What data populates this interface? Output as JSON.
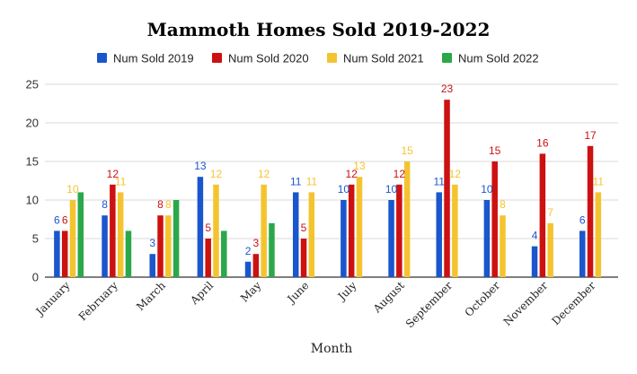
{
  "chart_data": {
    "type": "bar",
    "title": "Mammoth Homes Sold 2019-2022",
    "xlabel": "Month",
    "ylabel": "",
    "ylim": [
      0,
      25
    ],
    "yticks": [
      0,
      5,
      10,
      15,
      20,
      25
    ],
    "grid": true,
    "legend_position": "top",
    "categories": [
      "January",
      "February",
      "March",
      "April",
      "May",
      "June",
      "July",
      "August",
      "September",
      "October",
      "November",
      "December"
    ],
    "series": [
      {
        "name": "Num Sold 2019",
        "color": "#1a56cc",
        "values": [
          6,
          8,
          3,
          13,
          2,
          11,
          10,
          10,
          11,
          10,
          4,
          6
        ]
      },
      {
        "name": "Num Sold 2020",
        "color": "#cc1111",
        "values": [
          6,
          12,
          8,
          5,
          3,
          5,
          12,
          12,
          23,
          15,
          16,
          17
        ]
      },
      {
        "name": "Num Sold 2021",
        "color": "#f4c430",
        "values": [
          10,
          11,
          8,
          12,
          12,
          11,
          13,
          15,
          12,
          8,
          7,
          11
        ]
      },
      {
        "name": "Num Sold 2022",
        "color": "#2ba84a",
        "values": [
          11,
          6,
          10,
          6,
          7,
          null,
          null,
          null,
          null,
          null,
          null,
          null
        ]
      }
    ],
    "data_labels": [
      [
        6,
        8,
        3,
        13,
        2,
        11,
        10,
        10,
        11,
        10,
        4,
        6
      ],
      [
        6,
        12,
        8,
        5,
        3,
        5,
        12,
        12,
        23,
        15,
        16,
        17
      ],
      [
        10,
        11,
        8,
        12,
        12,
        11,
        13,
        15,
        12,
        8,
        7,
        11
      ],
      [
        null,
        null,
        null,
        null,
        null,
        null,
        null,
        null,
        null,
        null,
        null,
        null
      ]
    ]
  }
}
